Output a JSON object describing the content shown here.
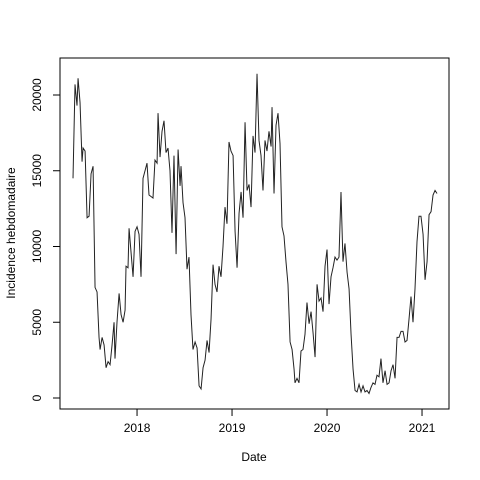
{
  "chart_data": {
    "type": "line",
    "x_label": "Date",
    "y_label": "Incidence hebdomadaire",
    "xlim": [
      2017.189,
      2021.284
    ],
    "xticks": [
      2018,
      2019,
      2020,
      2021
    ],
    "ylim": [
      -726,
      22442
    ],
    "yticks": [
      0,
      5000,
      10000,
      15000,
      20000
    ],
    "grid": false,
    "series": [
      {
        "name": "Incidence",
        "color": "#222222",
        "x": [
          2017.326,
          2017.347,
          2017.368,
          2017.379,
          2017.4,
          2017.421,
          2017.432,
          2017.453,
          2017.474,
          2017.495,
          2017.516,
          2017.537,
          2017.558,
          2017.579,
          2017.6,
          2017.611,
          2017.632,
          2017.653,
          2017.674,
          2017.695,
          2017.716,
          2017.737,
          2017.758,
          2017.768,
          2017.789,
          2017.811,
          2017.832,
          2017.853,
          2017.874,
          2017.884,
          2017.905,
          2017.916,
          2017.937,
          2017.958,
          2017.979,
          2018.0,
          2018.021,
          2018.042,
          2018.063,
          2018.084,
          2018.105,
          2018.126,
          2018.147,
          2018.168,
          2018.189,
          2018.211,
          2018.221,
          2018.242,
          2018.263,
          2018.284,
          2018.305,
          2018.326,
          2018.347,
          2018.368,
          2018.389,
          2018.411,
          2018.432,
          2018.453,
          2018.463,
          2018.484,
          2018.505,
          2018.526,
          2018.547,
          2018.568,
          2018.589,
          2018.611,
          2018.632,
          2018.653,
          2018.674,
          2018.695,
          2018.716,
          2018.737,
          2018.758,
          2018.779,
          2018.8,
          2018.821,
          2018.842,
          2018.863,
          2018.884,
          2018.905,
          2018.926,
          2018.947,
          2018.968,
          2018.989,
          2019.011,
          2019.032,
          2019.053,
          2019.074,
          2019.095,
          2019.116,
          2019.137,
          2019.158,
          2019.179,
          2019.2,
          2019.221,
          2019.242,
          2019.263,
          2019.284,
          2019.305,
          2019.326,
          2019.347,
          2019.368,
          2019.389,
          2019.411,
          2019.421,
          2019.442,
          2019.463,
          2019.484,
          2019.505,
          2019.526,
          2019.547,
          2019.568,
          2019.589,
          2019.611,
          2019.632,
          2019.653,
          2019.663,
          2019.684,
          2019.705,
          2019.726,
          2019.747,
          2019.768,
          2019.789,
          2019.811,
          2019.832,
          2019.853,
          2019.874,
          2019.895,
          2019.916,
          2019.937,
          2019.958,
          2019.979,
          2020.0,
          2020.021,
          2020.042,
          2020.063,
          2020.084,
          2020.105,
          2020.126,
          2020.147,
          2020.168,
          2020.189,
          2020.211,
          2020.232,
          2020.253,
          2020.274,
          2020.295,
          2020.316,
          2020.337,
          2020.358,
          2020.379,
          2020.4,
          2020.421,
          2020.442,
          2020.463,
          2020.484,
          2020.505,
          2020.526,
          2020.547,
          2020.568,
          2020.589,
          2020.611,
          2020.632,
          2020.653,
          2020.674,
          2020.695,
          2020.716,
          2020.737,
          2020.758,
          2020.779,
          2020.8,
          2020.821,
          2020.842,
          2020.863,
          2020.884,
          2020.905,
          2020.926,
          2020.947,
          2020.968,
          2020.989,
          2021.011,
          2021.032,
          2021.053,
          2021.074,
          2021.095,
          2021.116,
          2021.137,
          2021.158
        ],
        "values": [
          14500,
          20700,
          19300,
          21100,
          19500,
          15600,
          16500,
          16300,
          11900,
          12000,
          14800,
          15300,
          7300,
          7000,
          4000,
          3200,
          4000,
          3500,
          2000,
          2400,
          2200,
          3500,
          5000,
          2600,
          5000,
          6900,
          5500,
          5000,
          5800,
          8700,
          8600,
          11200,
          9600,
          8000,
          11000,
          11300,
          10800,
          8000,
          14500,
          15000,
          15500,
          13400,
          13300,
          13200,
          15700,
          15500,
          18800,
          15900,
          17600,
          18300,
          16200,
          16500,
          15000,
          10900,
          16000,
          9500,
          16400,
          14000,
          15300,
          12900,
          11900,
          8500,
          9300,
          5500,
          3200,
          3700,
          3300,
          800,
          600,
          2000,
          2500,
          3800,
          3000,
          5200,
          8800,
          7500,
          7000,
          8700,
          8000,
          10000,
          12600,
          11500,
          16900,
          16300,
          16000,
          11000,
          8600,
          12200,
          13600,
          11900,
          18200,
          13700,
          14100,
          12600,
          17300,
          16200,
          21400,
          17000,
          16000,
          13700,
          17000,
          16300,
          17600,
          16600,
          19200,
          13500,
          18000,
          18800,
          16800,
          11300,
          10700,
          9000,
          7500,
          3700,
          3200,
          1900,
          1000,
          1300,
          1000,
          3100,
          3200,
          4200,
          6300,
          4900,
          5700,
          4300,
          2700,
          7500,
          6400,
          6600,
          5700,
          8700,
          9800,
          6200,
          8000,
          8600,
          9300,
          9100,
          9300,
          13600,
          9000,
          10200,
          8300,
          7200,
          4200,
          1900,
          500,
          400,
          900,
          400,
          800,
          400,
          500,
          300,
          700,
          1000,
          900,
          1500,
          1400,
          2600,
          1000,
          1800,
          900,
          1000,
          1800,
          2200,
          1300,
          4000,
          4000,
          4400,
          4400,
          3700,
          3800,
          5200,
          6700,
          5000,
          7200,
          10300,
          12000,
          12000,
          10800,
          7800,
          9000,
          12100,
          12300,
          13400,
          13700,
          13500
        ]
      }
    ]
  }
}
